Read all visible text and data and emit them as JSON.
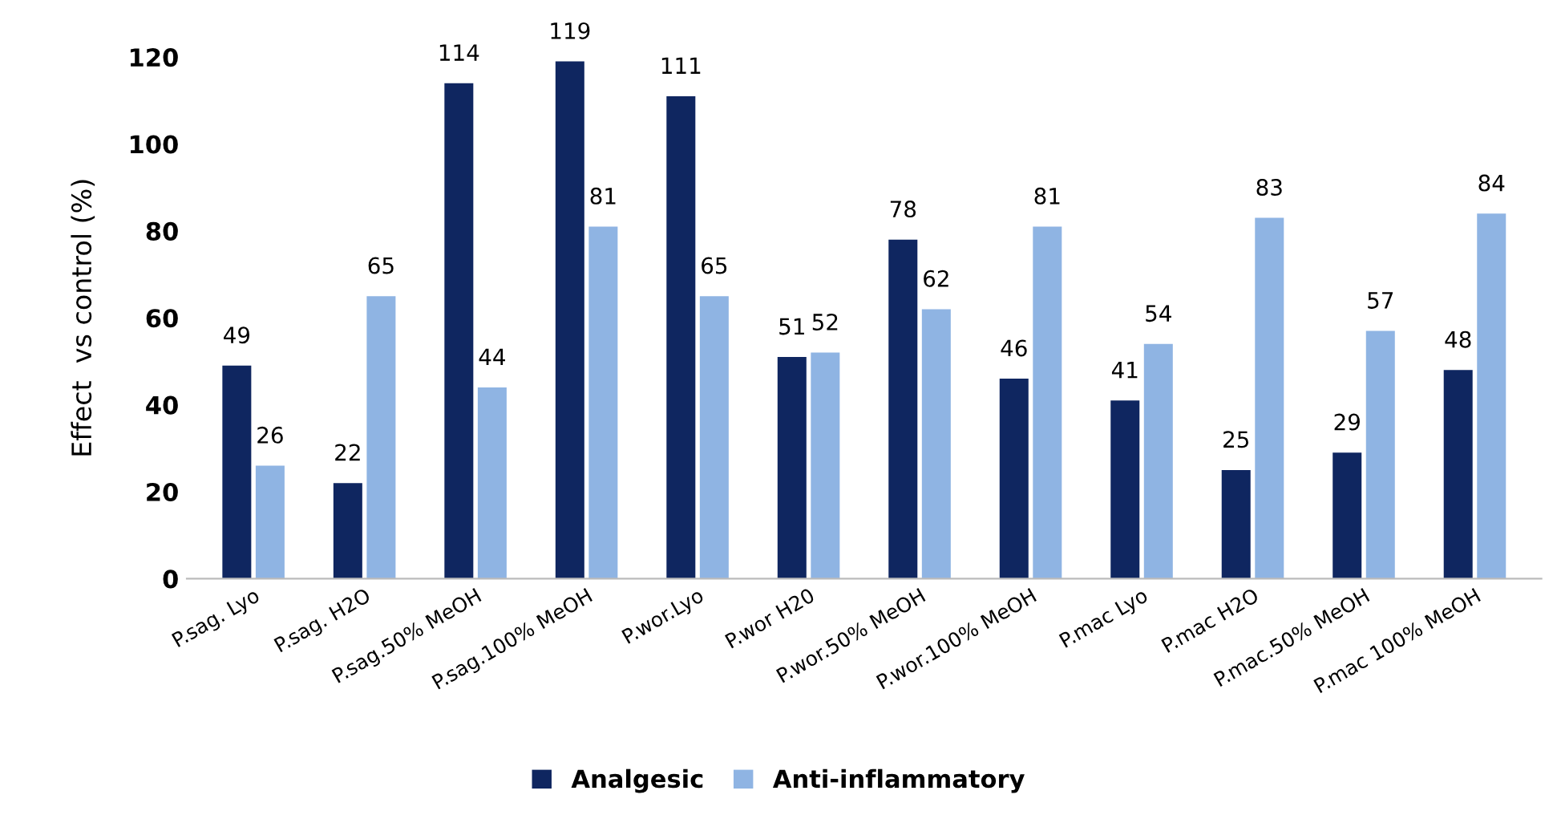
{
  "chart_data": {
    "type": "bar",
    "ylabel": "Effect  vs control (%)",
    "categories": [
      "P.sag. Lyo",
      "P.sag. H2O",
      "P.sag.50% MeOH",
      "P.sag.100% MeOH",
      "P.wor.Lyo",
      "P.wor H20",
      "P.wor.50% MeOH",
      "P.wor.100% MeOH",
      "P.mac Lyo",
      "P.mac H2O",
      "P.mac.50% MeOH",
      "P.mac 100% MeOH"
    ],
    "series": [
      {
        "name": "Analgesic",
        "color": "#0f2660",
        "values": [
          49,
          22,
          114,
          119,
          111,
          51,
          78,
          46,
          41,
          25,
          29,
          48
        ]
      },
      {
        "name": "Anti-inflammatory",
        "color": "#8fb4e3",
        "values": [
          26,
          65,
          44,
          81,
          65,
          52,
          62,
          81,
          54,
          83,
          57,
          84
        ]
      }
    ],
    "ylim": [
      0,
      120
    ],
    "yticks": [
      0,
      20,
      40,
      60,
      80,
      100,
      120
    ],
    "grid": false,
    "legend": "bottom",
    "data_labels": true
  }
}
